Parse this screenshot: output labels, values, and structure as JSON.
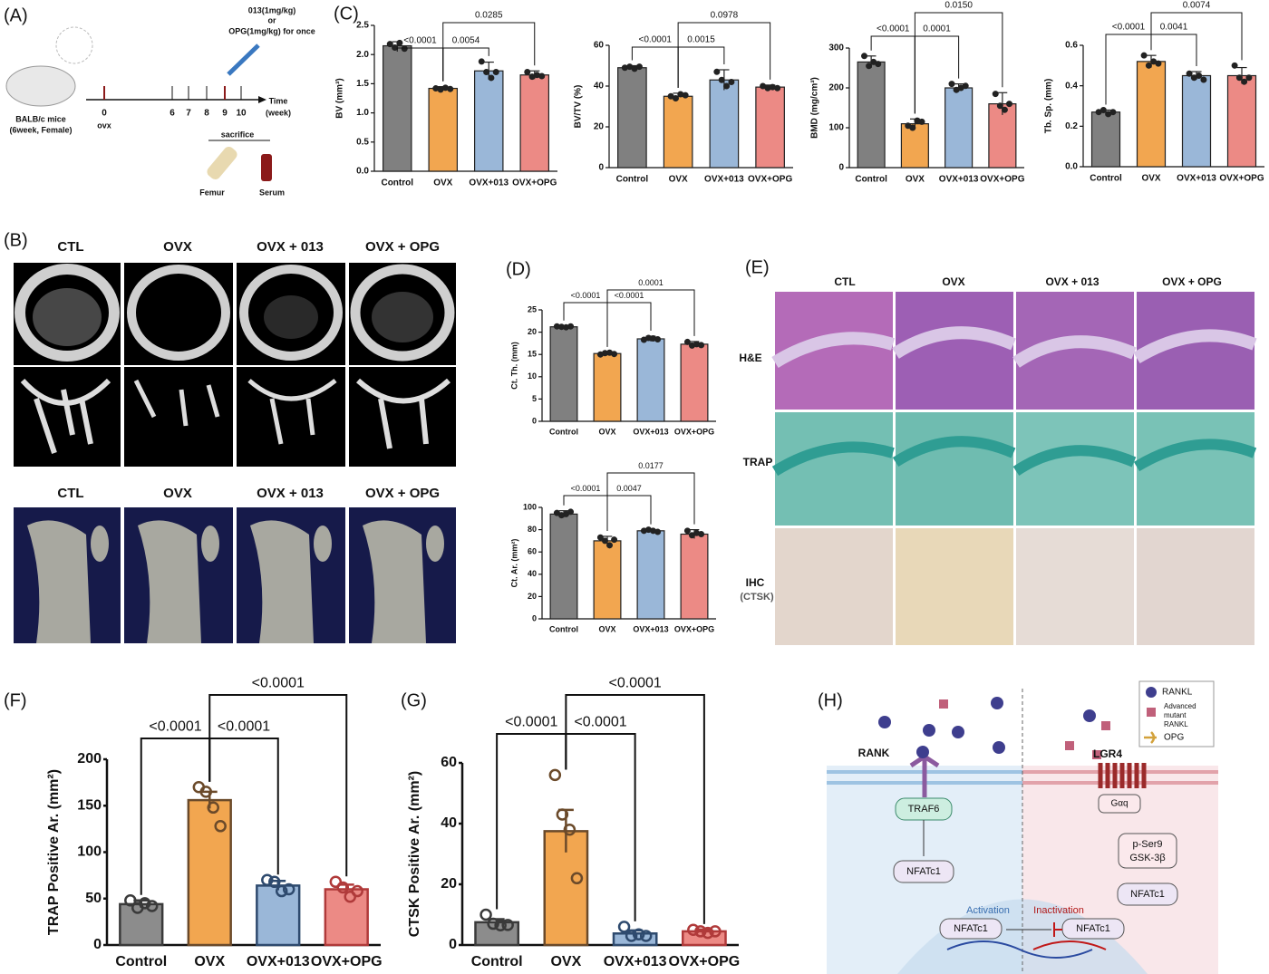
{
  "panels": {
    "labels": [
      "(A)",
      "(B)",
      "(C)",
      "(D)",
      "(E)",
      "(F)",
      "(G)",
      "(H)"
    ]
  },
  "panel_a": {
    "dose": [
      "013(1mg/kg)",
      "or",
      "OPG(1mg/kg) for once"
    ],
    "mouse": [
      "BALB/c mice",
      "(6week, Female)"
    ],
    "weeks": [
      "0",
      "6",
      "7",
      "8",
      "9",
      "10"
    ],
    "ovx": "ovx",
    "time": [
      "Time",
      "(week)"
    ],
    "sacrifice": "sacrifice",
    "samples": [
      "Femur",
      "Serum"
    ]
  },
  "panel_b": {
    "top_labels": [
      "CTL",
      "OVX",
      "OVX + 013",
      "OVX + OPG"
    ],
    "bottom_labels": [
      "CTL",
      "OVX",
      "OVX + 013",
      "OVX + OPG"
    ]
  },
  "panel_e": {
    "columns": [
      "CTL",
      "OVX",
      "OVX + 013",
      "OVX + OPG"
    ],
    "rows": [
      "H&E",
      "TRAP",
      "IHC"
    ],
    "row_note": "(CTSK)"
  },
  "panel_h": {
    "legend": [
      "RANKL",
      "Advanced",
      "mutant",
      "RANKL",
      "OPG"
    ],
    "receptors": [
      "RANK",
      "LGR4"
    ],
    "left": [
      "TRAF6",
      "NFATc1",
      "Activation",
      "NFATc1"
    ],
    "right": [
      "Gαq",
      "p-Ser9",
      "GSK-3β",
      "NFATc1",
      "Inactivation",
      "NFATc1"
    ]
  },
  "chart_data": [
    {
      "type": "bar",
      "ylabel": "BV (mm³)",
      "categories": [
        "Control",
        "OVX",
        "OVX+013",
        "OVX+OPG"
      ],
      "values": [
        2.15,
        1.42,
        1.72,
        1.65
      ],
      "errors": [
        0.07,
        0.03,
        0.15,
        0.07
      ],
      "points": [
        [
          2.18,
          2.12,
          2.2,
          2.1
        ],
        [
          1.42,
          1.4,
          1.43,
          1.41
        ],
        [
          1.88,
          1.7,
          1.6,
          1.7
        ],
        [
          1.7,
          1.62,
          1.65,
          1.63
        ]
      ],
      "ylim": [
        0,
        2.5
      ],
      "yticks": [
        {
          "value": 0,
          "label": "0.0"
        },
        0.5,
        {
          "value": 1,
          "label": "1.0"
        },
        1.5,
        {
          "value": 2,
          "label": "2.0"
        },
        2.5
      ],
      "colors": [
        "#808080",
        "#f2a650",
        "#9ab7d8",
        "#ec8a85"
      ],
      "edge_colors": [
        "#222222",
        "#222222",
        "#222222",
        "#222222"
      ],
      "annotations": [
        {
          "from": 0,
          "to": 1,
          "label": "<0.0001"
        },
        {
          "from": 1,
          "to": 2,
          "label": "0.0054"
        },
        {
          "from": 1,
          "to": 3,
          "label": "0.0285"
        }
      ]
    },
    {
      "type": "bar",
      "ylabel": "BV/TV (%)",
      "categories": [
        "Control",
        "OVX",
        "OVX+013",
        "OVX+OPG"
      ],
      "values": [
        49,
        35,
        43,
        39.5
      ],
      "errors": [
        1,
        1.5,
        5,
        1
      ],
      "points": [
        [
          49,
          49.5,
          48.5,
          49.5
        ],
        [
          35,
          34,
          36,
          35.5
        ],
        [
          47,
          43,
          40,
          42
        ],
        [
          40,
          39,
          39.5,
          39
        ]
      ],
      "ylim": [
        0,
        60
      ],
      "yticks": [
        0,
        20,
        40,
        60
      ],
      "colors": [
        "#808080",
        "#f2a650",
        "#9ab7d8",
        "#ec8a85"
      ],
      "edge_colors": [
        "#222222",
        "#222222",
        "#222222",
        "#222222"
      ],
      "annotations": [
        {
          "from": 0,
          "to": 1,
          "label": "<0.0001"
        },
        {
          "from": 1,
          "to": 2,
          "label": "0.0015"
        },
        {
          "from": 1,
          "to": 3,
          "label": "0.0978"
        }
      ]
    },
    {
      "type": "bar",
      "ylabel": "BMD (mg/cm³)",
      "categories": [
        "Control",
        "OVX",
        "OVX+013",
        "OVX+OPG"
      ],
      "values": [
        265,
        110,
        200,
        160
      ],
      "errors": [
        15,
        12,
        10,
        28
      ],
      "points": [
        [
          280,
          255,
          265,
          260
        ],
        [
          105,
          100,
          118,
          115
        ],
        [
          210,
          195,
          200,
          205
        ],
        [
          185,
          155,
          145,
          160
        ]
      ],
      "ylim": [
        0,
        300
      ],
      "yticks": [
        0,
        100,
        200,
        300
      ],
      "colors": [
        "#808080",
        "#f2a650",
        "#9ab7d8",
        "#ec8a85"
      ],
      "edge_colors": [
        "#222222",
        "#222222",
        "#222222",
        "#222222"
      ],
      "annotations": [
        {
          "from": 0,
          "to": 1,
          "label": "<0.0001"
        },
        {
          "from": 1,
          "to": 2,
          "label": "0.0001"
        },
        {
          "from": 1,
          "to": 3,
          "label": "0.0150"
        }
      ]
    },
    {
      "type": "bar",
      "ylabel": "Tb. Sp. (mm)",
      "categories": [
        "Control",
        "OVX",
        "OVX+013",
        "OVX+OPG"
      ],
      "values": [
        0.27,
        0.52,
        0.45,
        0.45
      ],
      "errors": [
        0.01,
        0.03,
        0.02,
        0.04
      ],
      "points": [
        [
          0.27,
          0.28,
          0.26,
          0.27
        ],
        [
          0.55,
          0.5,
          0.52,
          0.51
        ],
        [
          0.46,
          0.44,
          0.45,
          0.43
        ],
        [
          0.5,
          0.44,
          0.42,
          0.44
        ]
      ],
      "ylim": [
        0,
        0.6
      ],
      "yticks": [
        {
          "value": 0,
          "label": "0.0"
        },
        0.2,
        0.4,
        0.6
      ],
      "colors": [
        "#808080",
        "#f2a650",
        "#9ab7d8",
        "#ec8a85"
      ],
      "edge_colors": [
        "#222222",
        "#222222",
        "#222222",
        "#222222"
      ],
      "annotations": [
        {
          "from": 0,
          "to": 1,
          "label": "<0.0001"
        },
        {
          "from": 1,
          "to": 2,
          "label": "0.0041"
        },
        {
          "from": 1,
          "to": 3,
          "label": "0.0074"
        }
      ]
    },
    {
      "type": "bar",
      "ylabel": "Ct. Th. (mm)",
      "categories": [
        "Control",
        "OVX",
        "OVX+013",
        "OVX+OPG"
      ],
      "values": [
        21.2,
        15.2,
        18.5,
        17.3
      ],
      "errors": [
        0.2,
        0.3,
        0.6,
        0.6
      ],
      "points": [
        [
          21.3,
          21.2,
          21.1,
          21.3
        ],
        [
          15,
          15.3,
          15.4,
          15.1
        ],
        [
          18.3,
          18.7,
          18.6,
          18.4
        ],
        [
          17.8,
          17,
          17.3,
          17.1
        ]
      ],
      "ylim": [
        0,
        25
      ],
      "yticks": [
        0,
        5,
        10,
        15,
        20,
        25
      ],
      "colors": [
        "#808080",
        "#f2a650",
        "#9ab7d8",
        "#ec8a85"
      ],
      "edge_colors": [
        "#222222",
        "#222222",
        "#222222",
        "#222222"
      ],
      "annotations": [
        {
          "from": 0,
          "to": 1,
          "label": "<0.0001"
        },
        {
          "from": 1,
          "to": 2,
          "label": "<0.0001"
        },
        {
          "from": 1,
          "to": 3,
          "label": "0.0001"
        }
      ]
    },
    {
      "type": "bar",
      "ylabel": "Ct. Ar. (mm²)",
      "categories": [
        "Control",
        "OVX",
        "OVX+013",
        "OVX+OPG"
      ],
      "values": [
        94,
        70,
        79,
        76
      ],
      "errors": [
        3,
        4,
        1,
        4
      ],
      "points": [
        [
          95,
          93,
          94,
          96
        ],
        [
          73,
          70,
          66,
          71
        ],
        [
          79,
          80,
          79,
          78
        ],
        [
          79,
          75,
          77,
          76
        ]
      ],
      "ylim": [
        0,
        100
      ],
      "yticks": [
        0,
        20,
        40,
        60,
        80,
        100
      ],
      "colors": [
        "#808080",
        "#f2a650",
        "#9ab7d8",
        "#ec8a85"
      ],
      "edge_colors": [
        "#222222",
        "#222222",
        "#222222",
        "#222222"
      ],
      "annotations": [
        {
          "from": 0,
          "to": 1,
          "label": "<0.0001"
        },
        {
          "from": 1,
          "to": 2,
          "label": "0.0047"
        },
        {
          "from": 1,
          "to": 3,
          "label": "0.0177"
        }
      ]
    },
    {
      "type": "bar",
      "ylabel": "TRAP Positive Ar. (mm²)",
      "categories": [
        "Control",
        "OVX",
        "OVX+013",
        "OVX+OPG"
      ],
      "values": [
        44,
        156,
        64,
        60
      ],
      "errors": [
        4,
        9,
        5,
        5
      ],
      "points": [
        [
          48,
          40,
          45,
          42
        ],
        [
          170,
          165,
          148,
          128
        ],
        [
          70,
          68,
          58,
          60
        ],
        [
          68,
          62,
          52,
          58
        ]
      ],
      "ylim": [
        0,
        200
      ],
      "yticks": [
        0,
        50,
        100,
        150,
        200
      ],
      "colors": [
        "#8c8c8c",
        "#f2a650",
        "#9ab7d8",
        "#ec8a85"
      ],
      "edge_colors": [
        "#3a3a3a",
        "#6b4a2a",
        "#2e4a6e",
        "#b03a3a"
      ],
      "annotations": [
        {
          "from": 0,
          "to": 1,
          "label": "<0.0001"
        },
        {
          "from": 1,
          "to": 2,
          "label": "<0.0001"
        },
        {
          "from": 1,
          "to": 3,
          "label": "<0.0001"
        }
      ]
    },
    {
      "type": "bar",
      "ylabel": "CTSK Positive Ar. (mm²)",
      "categories": [
        "Control",
        "OVX",
        "OVX+013",
        "OVX+OPG"
      ],
      "values": [
        7.5,
        37.5,
        3.8,
        4.5
      ],
      "errors": [
        1,
        7,
        1,
        0.6
      ],
      "points": [
        [
          10,
          7,
          6.5,
          6.6
        ],
        [
          56,
          43,
          38,
          22
        ],
        [
          6,
          3,
          3.5,
          3
        ],
        [
          5,
          4.5,
          4,
          4.5
        ]
      ],
      "ylim": [
        0,
        60
      ],
      "yticks": [
        0,
        20,
        40,
        60
      ],
      "colors": [
        "#8c8c8c",
        "#f2a650",
        "#9ab7d8",
        "#ec8a85"
      ],
      "edge_colors": [
        "#3a3a3a",
        "#6b4a2a",
        "#2e4a6e",
        "#b03a3a"
      ],
      "annotations": [
        {
          "from": 0,
          "to": 1,
          "label": "<0.0001"
        },
        {
          "from": 1,
          "to": 2,
          "label": "<0.0001"
        },
        {
          "from": 1,
          "to": 3,
          "label": "<0.0001"
        }
      ]
    }
  ]
}
